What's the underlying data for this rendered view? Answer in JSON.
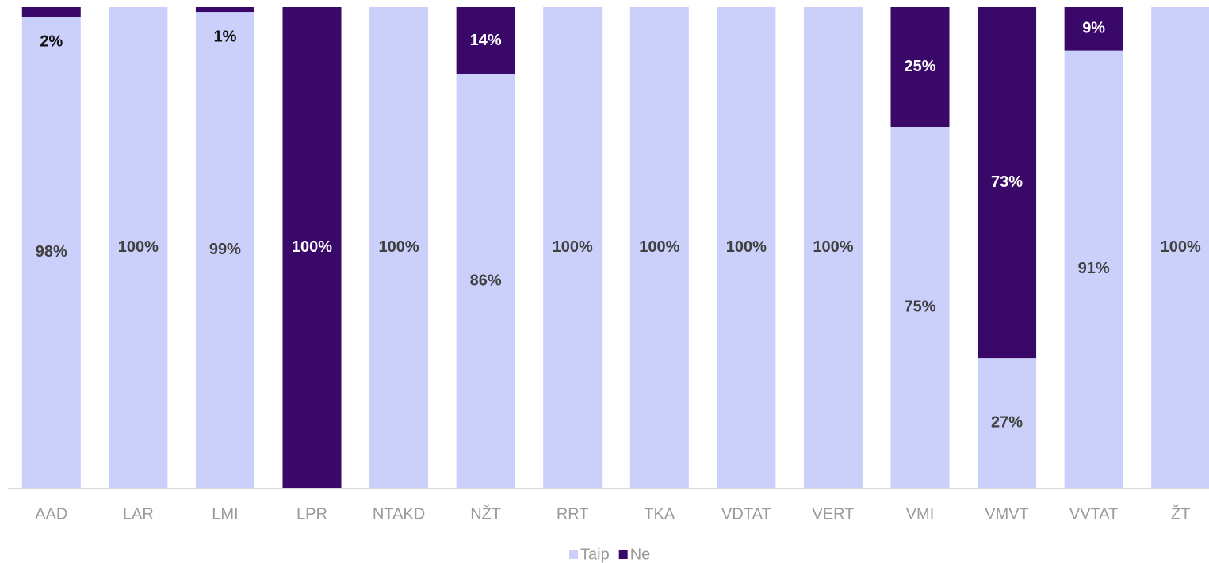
{
  "chart_data": {
    "type": "stacked_bar",
    "categories": [
      "AAD",
      "LAR",
      "LMI",
      "LPR",
      "NTAKD",
      "NŽT",
      "RRT",
      "TKA",
      "VDTAT",
      "VERT",
      "VMI",
      "VMVT",
      "VVTAT",
      "ŽT"
    ],
    "series": [
      {
        "name": "Taip",
        "color": "#cbd0fb",
        "values": [
          98,
          100,
          99,
          0,
          100,
          86,
          100,
          100,
          100,
          100,
          75,
          27,
          91,
          100
        ],
        "value_labels": [
          "98%",
          "100%",
          "99%",
          null,
          "100%",
          "86%",
          "100%",
          "100%",
          "100%",
          "100%",
          "75%",
          "27%",
          "91%",
          "100%"
        ]
      },
      {
        "name": "Ne",
        "color": "#3a0868",
        "values": [
          2,
          0,
          1,
          100,
          0,
          14,
          0,
          0,
          0,
          0,
          25,
          73,
          9,
          0
        ],
        "value_labels": [
          "2%",
          null,
          "1%",
          "100%",
          null,
          "14%",
          null,
          null,
          null,
          null,
          "25%",
          "73%",
          "9%",
          null
        ]
      }
    ],
    "ylim": [
      0,
      100
    ]
  }
}
